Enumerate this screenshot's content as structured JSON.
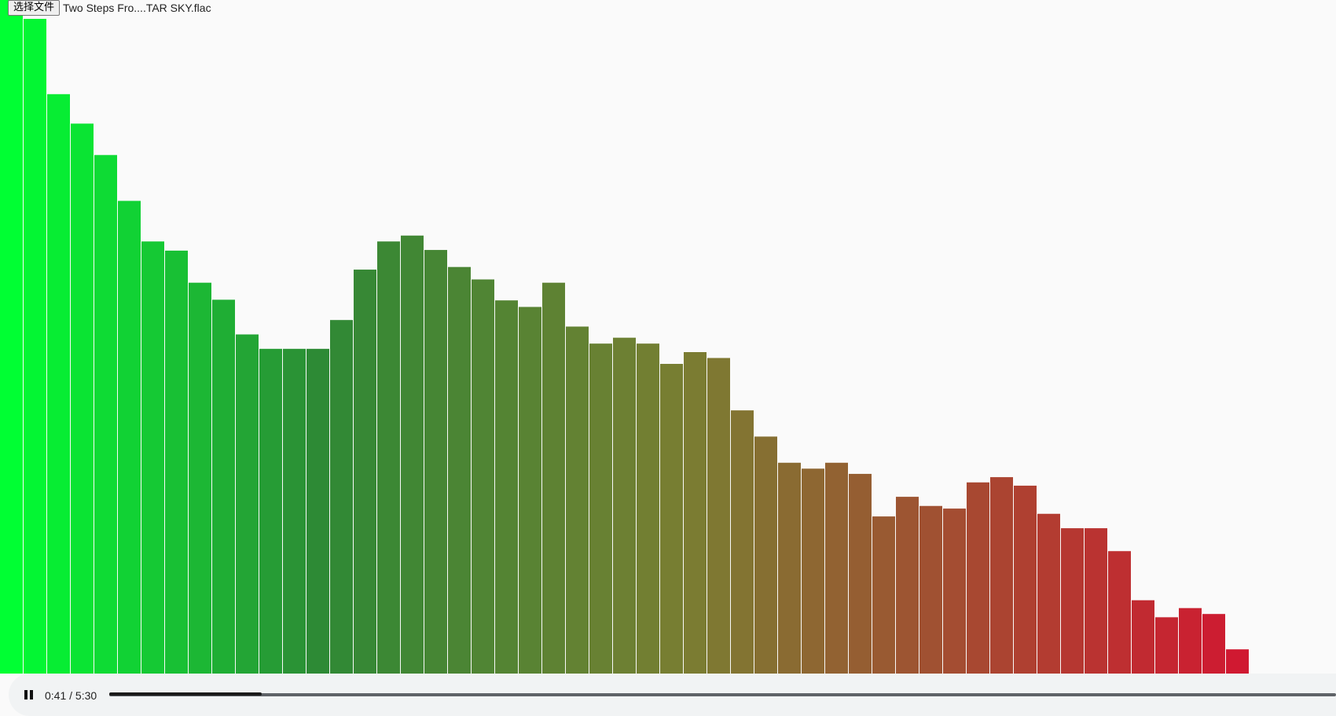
{
  "file_input": {
    "button_label": "选择文件",
    "file_name": "Two Steps Fro....TAR SKY.flac"
  },
  "player": {
    "time_display": "0:41 / 5:30",
    "state_icon": "pause-icon",
    "progress": 0.124
  },
  "chart_data": {
    "type": "bar",
    "values": [
      1.03,
      1.0,
      0.885,
      0.84,
      0.792,
      0.722,
      0.66,
      0.646,
      0.597,
      0.571,
      0.518,
      0.496,
      0.496,
      0.496,
      0.54,
      0.617,
      0.66,
      0.669,
      0.647,
      0.621,
      0.602,
      0.57,
      0.56,
      0.597,
      0.53,
      0.504,
      0.513,
      0.504,
      0.473,
      0.491,
      0.482,
      0.402,
      0.362,
      0.322,
      0.313,
      0.322,
      0.305,
      0.24,
      0.27,
      0.256,
      0.252,
      0.292,
      0.3,
      0.287,
      0.244,
      0.222,
      0.222,
      0.187,
      0.112,
      0.086,
      0.1,
      0.091,
      0.037
    ],
    "ylim": [
      0,
      1
    ],
    "colors": {
      "start": "#00ff33",
      "mid_green": "#2d8a35",
      "mid": "#7a7e32",
      "end": "#d01931"
    }
  }
}
